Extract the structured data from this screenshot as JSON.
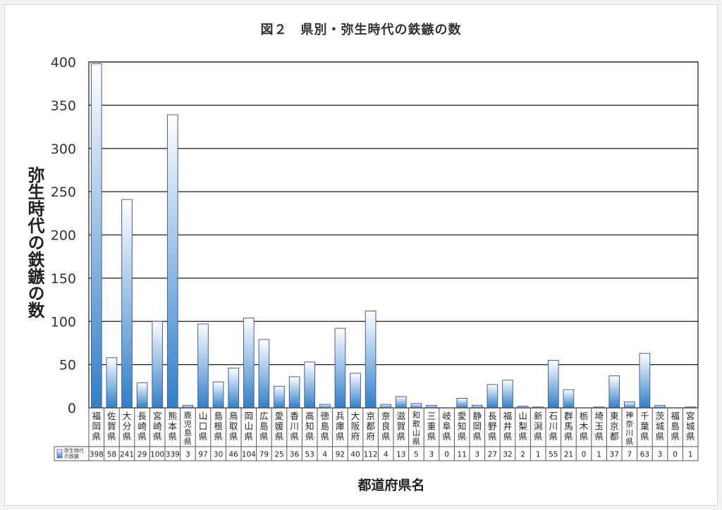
{
  "chart_data": {
    "type": "bar",
    "title": "図２　県別・弥生時代の鉄鏃の数",
    "xlabel": "都道府県名",
    "ylabel": "弥生時代の鉄鏃の数",
    "ylim": [
      0,
      400
    ],
    "yticks": [
      0,
      50,
      100,
      150,
      200,
      250,
      300,
      350,
      400
    ],
    "grid": true,
    "categories": [
      "福岡県",
      "佐賀県",
      "大分県",
      "長崎県",
      "宮崎県",
      "熊本県",
      "鹿児島県",
      "山口県",
      "島根県",
      "鳥取県",
      "岡山県",
      "広島県",
      "愛媛県",
      "香川県",
      "高知県",
      "徳島県",
      "兵庫県",
      "大阪府",
      "京都府",
      "奈良県",
      "滋賀県",
      "和歌山県",
      "三重県",
      "岐阜県",
      "愛知県",
      "静岡県",
      "長野県",
      "福井県",
      "山梨県",
      "新潟県",
      "石川県",
      "群馬県",
      "栃木県",
      "埼玉県",
      "東京都",
      "神奈川県",
      "千葉県",
      "茨城県",
      "福島県",
      "宮城県"
    ],
    "series": [
      {
        "name": "弥生時代の鉄鏃",
        "values": [
          398,
          58,
          241,
          29,
          100,
          339,
          3,
          97,
          30,
          46,
          104,
          79,
          25,
          36,
          53,
          4,
          92,
          40,
          112,
          4,
          13,
          5,
          3,
          0,
          11,
          3,
          27,
          32,
          2,
          1,
          55,
          21,
          0,
          1,
          37,
          7,
          63,
          3,
          0,
          1
        ]
      }
    ],
    "legend_position": "data-table-left",
    "bar_gradient": [
      "#ffffff",
      "#2e7fc9"
    ]
  }
}
